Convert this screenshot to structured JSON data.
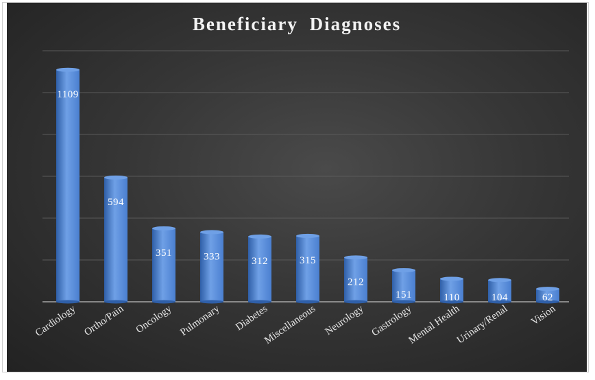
{
  "chart_data": {
    "type": "bar",
    "title": "Beneficiary Diagnoses",
    "categories": [
      "Cardiology",
      "Ortho/Pain",
      "Oncology",
      "Pulmonary",
      "Diabetes",
      "Miscellaneous",
      "Neurology",
      "Gastrology",
      "Mental Health",
      "Urinary/Renal",
      "Vision"
    ],
    "values": [
      1109,
      594,
      351,
      333,
      312,
      315,
      212,
      151,
      110,
      104,
      62
    ],
    "ylim": [
      0,
      1200
    ],
    "grid": true,
    "legend": "none",
    "colors": {
      "bar": "#4a7fd0",
      "bar_light": "#6fa0e6",
      "bar_dark": "#2f5fa8",
      "gridline": "#5a5a5a",
      "axis": "#bfbfbf"
    }
  }
}
